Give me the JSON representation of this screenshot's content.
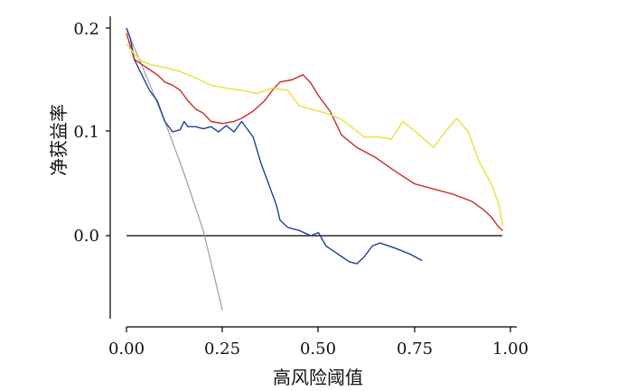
{
  "chart_data": {
    "type": "line",
    "xlabel": "高风险阈值",
    "ylabel": "净获益率",
    "xlim": [
      0,
      1
    ],
    "ylim": [
      -0.07,
      0.21
    ],
    "xticks": [
      "0.00",
      "0.25",
      "0.50",
      "0.75",
      "1.00"
    ],
    "xtick_values": [
      0,
      0.25,
      0.5,
      0.75,
      1.0
    ],
    "yticks": [
      "0.0",
      "0.1",
      "0.2"
    ],
    "ytick_values": [
      0,
      0.1,
      0.2
    ],
    "grid": false,
    "series": [
      {
        "color": "#9e9e9e",
        "x": [
          0,
          0.05,
          0.1,
          0.15,
          0.2,
          0.25
        ],
        "y": [
          0.199,
          0.155,
          0.11,
          0.06,
          0.005,
          -0.072
        ]
      },
      {
        "color": "#1f3f99",
        "x": [
          0,
          0.01,
          0.02,
          0.04,
          0.06,
          0.08,
          0.09,
          0.1,
          0.11,
          0.12,
          0.14,
          0.15,
          0.16,
          0.18,
          0.2,
          0.22,
          0.24,
          0.26,
          0.28,
          0.3,
          0.32,
          0.33,
          0.35,
          0.36,
          0.37,
          0.38,
          0.39,
          0.4,
          0.42,
          0.45,
          0.48,
          0.5,
          0.52,
          0.54,
          0.56,
          0.58,
          0.6,
          0.62,
          0.64,
          0.66,
          0.7,
          0.74,
          0.77
        ],
        "y": [
          0.2,
          0.19,
          0.17,
          0.155,
          0.14,
          0.13,
          0.12,
          0.11,
          0.105,
          0.1,
          0.102,
          0.11,
          0.105,
          0.105,
          0.103,
          0.105,
          0.1,
          0.106,
          0.1,
          0.11,
          0.1,
          0.095,
          0.07,
          0.06,
          0.05,
          0.04,
          0.03,
          0.015,
          0.008,
          0.005,
          0.0,
          0.003,
          -0.01,
          -0.015,
          -0.02,
          -0.025,
          -0.027,
          -0.02,
          -0.01,
          -0.007,
          -0.012,
          -0.018,
          -0.024
        ]
      },
      {
        "color": "#cc2a2a",
        "x": [
          0,
          0.02,
          0.04,
          0.06,
          0.08,
          0.1,
          0.12,
          0.14,
          0.16,
          0.18,
          0.2,
          0.22,
          0.25,
          0.28,
          0.3,
          0.33,
          0.36,
          0.38,
          0.4,
          0.43,
          0.46,
          0.48,
          0.5,
          0.53,
          0.56,
          0.6,
          0.65,
          0.7,
          0.75,
          0.8,
          0.85,
          0.9,
          0.93,
          0.95,
          0.97,
          0.98
        ],
        "y": [
          0.195,
          0.17,
          0.165,
          0.16,
          0.155,
          0.148,
          0.145,
          0.14,
          0.13,
          0.122,
          0.118,
          0.11,
          0.108,
          0.11,
          0.113,
          0.12,
          0.13,
          0.14,
          0.148,
          0.15,
          0.155,
          0.147,
          0.135,
          0.12,
          0.097,
          0.085,
          0.075,
          0.062,
          0.05,
          0.045,
          0.04,
          0.033,
          0.025,
          0.018,
          0.008,
          0.005
        ]
      },
      {
        "color": "#e8e23a",
        "x": [
          0,
          0.02,
          0.04,
          0.06,
          0.1,
          0.14,
          0.18,
          0.22,
          0.26,
          0.3,
          0.34,
          0.38,
          0.42,
          0.45,
          0.48,
          0.52,
          0.56,
          0.62,
          0.66,
          0.69,
          0.72,
          0.76,
          0.8,
          0.83,
          0.86,
          0.89,
          0.92,
          0.95,
          0.97,
          0.98
        ],
        "y": [
          0.185,
          0.175,
          0.168,
          0.165,
          0.162,
          0.158,
          0.152,
          0.145,
          0.142,
          0.14,
          0.137,
          0.142,
          0.14,
          0.125,
          0.122,
          0.118,
          0.112,
          0.095,
          0.095,
          0.093,
          0.11,
          0.098,
          0.085,
          0.1,
          0.113,
          0.1,
          0.07,
          0.05,
          0.03,
          0.01
        ]
      }
    ]
  }
}
